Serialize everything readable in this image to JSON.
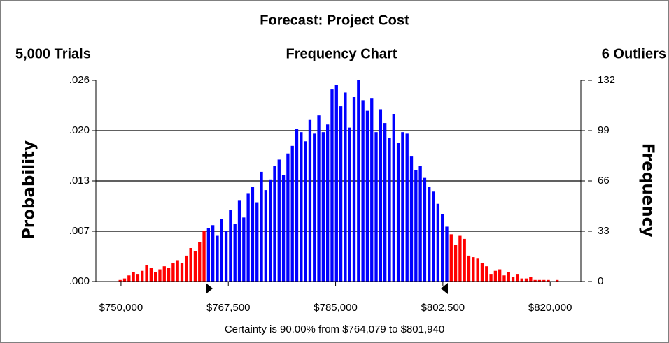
{
  "chart_data": {
    "type": "histogram",
    "title": "Forecast: Project Cost",
    "trials_label": "5,000 Trials",
    "subtitle": "Frequency Chart",
    "outliers_label": "6 Outliers",
    "ylabel": "Probability",
    "y2label": "Frequency",
    "footer": "Certainty is 90.00% from $764,079 to $801,940",
    "xlim": [
      745900,
      825000
    ],
    "xticks": [
      {
        "value": 750000,
        "label": "$750,000"
      },
      {
        "value": 767500,
        "label": "$767,500"
      },
      {
        "value": 785000,
        "label": "$785,000"
      },
      {
        "value": 802500,
        "label": "$802,500"
      },
      {
        "value": 820000,
        "label": "$820,000"
      }
    ],
    "ylim": [
      0,
      0.0264
    ],
    "yticks": [
      {
        "value": 0,
        "label": ".000"
      },
      {
        "value": 0.0066,
        "label": ".007"
      },
      {
        "value": 0.0132,
        "label": ".013"
      },
      {
        "value": 0.0198,
        "label": ".020"
      },
      {
        "value": 0.0264,
        "label": ".026"
      }
    ],
    "y2lim": [
      0,
      132
    ],
    "y2ticks": [
      0,
      33,
      66,
      99,
      132
    ],
    "grid": true,
    "bins": [
      749500,
      750220,
      750940,
      751660,
      752380,
      753100,
      753820,
      754540,
      755260,
      755980,
      756700,
      757420,
      758140,
      758860,
      759580,
      760300,
      761020,
      761740,
      762460,
      763180,
      763900,
      764620,
      765340,
      766060,
      766780,
      767500,
      768220,
      768940,
      769660,
      770380,
      771100,
      771820,
      772540,
      773260,
      773980,
      774700,
      775420,
      776140,
      776860,
      777580,
      778300,
      779020,
      779740,
      780460,
      781180,
      781900,
      782620,
      783340,
      784060,
      784780,
      785500,
      786220,
      786940,
      787660,
      788380,
      789100,
      789820,
      790540,
      791260,
      791980,
      792700,
      793420,
      794140,
      794860,
      795580,
      796300,
      797020,
      797740,
      798460,
      799180,
      799900,
      800620,
      801340,
      802060,
      802780,
      803500,
      804220,
      804940,
      805660,
      806380,
      807100,
      807820,
      808540,
      809260,
      809980,
      810700,
      811420,
      812140,
      812860,
      813580,
      814300,
      815020,
      815740,
      816460,
      817180,
      817900,
      818620,
      819340,
      820060,
      820780,
      821500
    ],
    "series": [
      {
        "axis": "y2",
        "values": [
          1,
          2,
          4,
          6,
          5,
          7,
          11,
          9,
          6,
          8,
          10,
          9,
          12,
          14,
          12,
          17,
          22,
          20,
          26,
          33,
          35,
          37,
          30,
          41,
          33,
          47,
          38,
          53,
          42,
          58,
          62,
          52,
          72,
          60,
          67,
          76,
          80,
          70,
          84,
          89,
          100,
          98,
          92,
          106,
          97,
          109,
          98,
          103,
          126,
          129,
          115,
          124,
          101,
          121,
          132,
          119,
          112,
          120,
          98,
          113,
          104,
          94,
          110,
          91,
          98,
          97,
          82,
          73,
          76,
          68,
          62,
          59,
          51,
          44,
          36,
          31,
          24,
          30,
          28,
          17,
          16,
          15,
          12,
          10,
          5,
          7,
          8,
          4,
          6,
          3,
          5,
          2,
          2,
          3,
          1,
          1,
          1,
          1,
          0,
          1
        ],
        "colors": [
          "#ff0000",
          "#ff0000",
          "#ff0000",
          "#ff0000",
          "#ff0000",
          "#ff0000",
          "#ff0000",
          "#ff0000",
          "#ff0000",
          "#ff0000",
          "#ff0000",
          "#ff0000",
          "#ff0000",
          "#ff0000",
          "#ff0000",
          "#ff0000",
          "#ff0000",
          "#ff0000",
          "#ff0000",
          "#ff0000",
          "#0000ff",
          "#0000ff",
          "#0000ff",
          "#0000ff",
          "#0000ff",
          "#0000ff",
          "#0000ff",
          "#0000ff",
          "#0000ff",
          "#0000ff",
          "#0000ff",
          "#0000ff",
          "#0000ff",
          "#0000ff",
          "#0000ff",
          "#0000ff",
          "#0000ff",
          "#0000ff",
          "#0000ff",
          "#0000ff",
          "#0000ff",
          "#0000ff",
          "#0000ff",
          "#0000ff",
          "#0000ff",
          "#0000ff",
          "#0000ff",
          "#0000ff",
          "#0000ff",
          "#0000ff",
          "#0000ff",
          "#0000ff",
          "#0000ff",
          "#0000ff",
          "#0000ff",
          "#0000ff",
          "#0000ff",
          "#0000ff",
          "#0000ff",
          "#0000ff",
          "#0000ff",
          "#0000ff",
          "#0000ff",
          "#0000ff",
          "#0000ff",
          "#0000ff",
          "#0000ff",
          "#0000ff",
          "#0000ff",
          "#0000ff",
          "#0000ff",
          "#0000ff",
          "#0000ff",
          "#0000ff",
          "#0000ff",
          "#ff0000",
          "#ff0000",
          "#ff0000",
          "#ff0000",
          "#ff0000",
          "#ff0000",
          "#ff0000",
          "#ff0000",
          "#ff0000",
          "#ff0000",
          "#ff0000",
          "#ff0000",
          "#ff0000",
          "#ff0000",
          "#ff0000",
          "#ff0000",
          "#ff0000",
          "#ff0000",
          "#ff0000",
          "#ff0000",
          "#ff0000",
          "#ff0000",
          "#ff0000",
          "#ff0000",
          "#ff0000"
        ]
      }
    ]
  }
}
